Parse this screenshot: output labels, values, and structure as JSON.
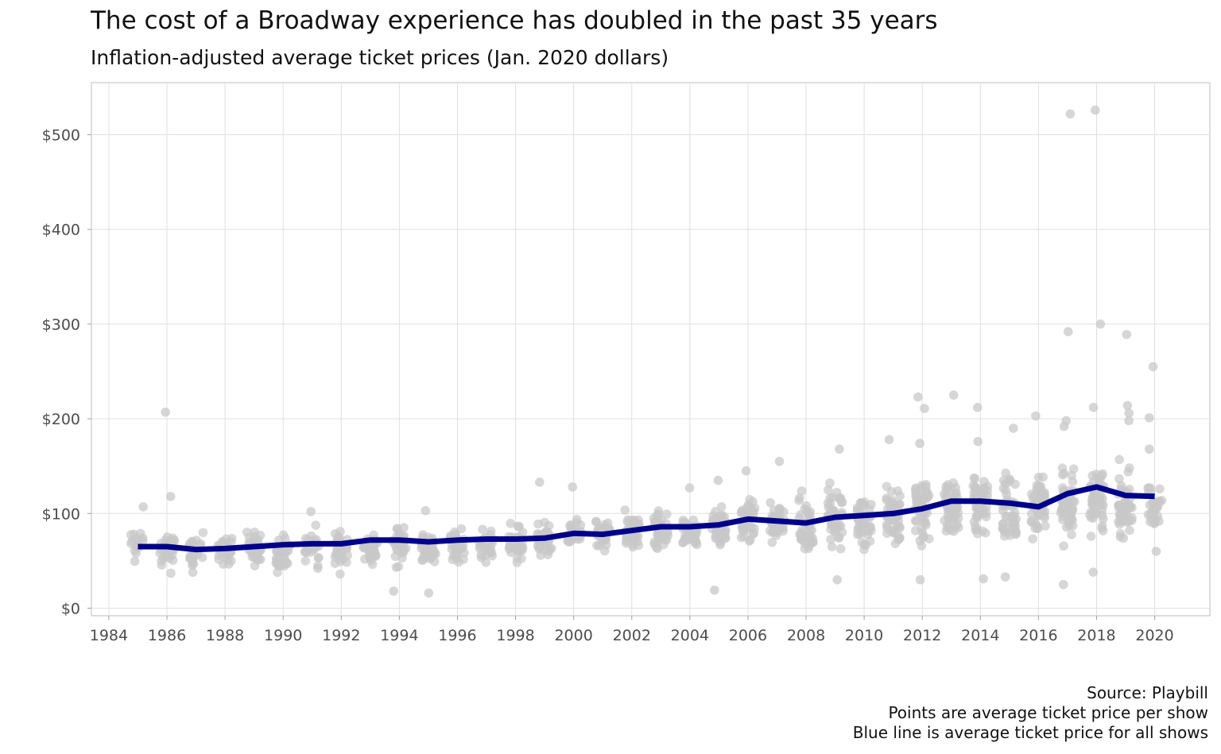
{
  "title": "The cost of a Broadway experience has doubled in the past 35 years",
  "subtitle": "Inflation-adjusted average ticket prices (Jan. 2020 dollars)",
  "caption": [
    "Source: Playbill",
    "Points are average ticket price per show",
    "Blue line is average ticket price for all shows"
  ],
  "colors": {
    "line": "#00008B",
    "points": "#C8C8C8",
    "grid": "#E0E0E0",
    "panel_border": "#BDBDBD",
    "axis_text": "#4D4D4D"
  },
  "chart_data": {
    "type": "scatter",
    "xlim": [
      1983.4,
      2021.9
    ],
    "ylim": [
      -8,
      555
    ],
    "grid": true,
    "x_ticks": [
      1984,
      1986,
      1988,
      1990,
      1992,
      1994,
      1996,
      1998,
      2000,
      2002,
      2004,
      2006,
      2008,
      2010,
      2012,
      2014,
      2016,
      2018,
      2020
    ],
    "x_tick_labels": [
      "1984",
      "1986",
      "1988",
      "1990",
      "1992",
      "1994",
      "1996",
      "1998",
      "2000",
      "2002",
      "2004",
      "2006",
      "2008",
      "2010",
      "2012",
      "2014",
      "2016",
      "2018",
      "2020"
    ],
    "y_ticks": [
      0,
      100,
      200,
      300,
      400,
      500
    ],
    "y_tick_labels": [
      "$0",
      "$100",
      "$200",
      "$300",
      "$400",
      "$500"
    ],
    "line_series": {
      "x": [
        1985,
        1986,
        1987,
        1988,
        1989,
        1990,
        1991,
        1992,
        1993,
        1994,
        1995,
        1996,
        1997,
        1998,
        1999,
        2000,
        2001,
        2002,
        2003,
        2004,
        2005,
        2006,
        2007,
        2008,
        2009,
        2010,
        2011,
        2012,
        2013,
        2014,
        2015,
        2016,
        2017,
        2018,
        2019,
        2020
      ],
      "y": [
        65,
        65,
        62,
        63,
        65,
        67,
        68,
        68,
        72,
        72,
        70,
        72,
        73,
        73,
        74,
        79,
        78,
        82,
        86,
        86,
        88,
        94,
        92,
        90,
        96,
        98,
        100,
        105,
        113,
        113,
        111,
        107,
        121,
        128,
        119,
        118
      ]
    },
    "point_ranges": {
      "x": [
        1985,
        1986,
        1987,
        1988,
        1989,
        1990,
        1991,
        1992,
        1993,
        1994,
        1995,
        1996,
        1997,
        1998,
        1999,
        2000,
        2001,
        2002,
        2003,
        2004,
        2005,
        2006,
        2007,
        2008,
        2009,
        2010,
        2011,
        2012,
        2013,
        2014,
        2015,
        2016,
        2017,
        2018,
        2019,
        2020
      ],
      "low": [
        35,
        25,
        25,
        30,
        28,
        22,
        22,
        25,
        30,
        28,
        25,
        32,
        30,
        32,
        40,
        45,
        48,
        40,
        42,
        48,
        50,
        55,
        50,
        45,
        50,
        45,
        40,
        38,
        45,
        42,
        45,
        55,
        45,
        45,
        50,
        65
      ],
      "high": [
        100,
        90,
        90,
        90,
        90,
        90,
        95,
        92,
        92,
        95,
        95,
        90,
        92,
        98,
        100,
        100,
        105,
        110,
        115,
        110,
        115,
        125,
        125,
        130,
        145,
        140,
        150,
        160,
        165,
        170,
        160,
        160,
        160,
        170,
        165,
        140
      ],
      "count": [
        15,
        35,
        30,
        30,
        32,
        34,
        30,
        32,
        30,
        34,
        30,
        30,
        30,
        32,
        35,
        32,
        35,
        38,
        38,
        40,
        35,
        42,
        40,
        40,
        45,
        45,
        48,
        50,
        50,
        52,
        50,
        52,
        50,
        52,
        48,
        30
      ]
    },
    "outliers": [
      {
        "x": 1986,
        "y": 207
      },
      {
        "x": 1986,
        "y": 118
      },
      {
        "x": 1985,
        "y": 107
      },
      {
        "x": 1991,
        "y": 102
      },
      {
        "x": 1995,
        "y": 103
      },
      {
        "x": 1995,
        "y": 16
      },
      {
        "x": 1994,
        "y": 18
      },
      {
        "x": 1999,
        "y": 133
      },
      {
        "x": 2000,
        "y": 128
      },
      {
        "x": 2004,
        "y": 127
      },
      {
        "x": 2005,
        "y": 19
      },
      {
        "x": 2005,
        "y": 135
      },
      {
        "x": 2006,
        "y": 145
      },
      {
        "x": 2007,
        "y": 155
      },
      {
        "x": 2009,
        "y": 168
      },
      {
        "x": 2009,
        "y": 30
      },
      {
        "x": 2011,
        "y": 178
      },
      {
        "x": 2012,
        "y": 223
      },
      {
        "x": 2012,
        "y": 211
      },
      {
        "x": 2012,
        "y": 174
      },
      {
        "x": 2012,
        "y": 30
      },
      {
        "x": 2013,
        "y": 225
      },
      {
        "x": 2014,
        "y": 212
      },
      {
        "x": 2014,
        "y": 176
      },
      {
        "x": 2014,
        "y": 31
      },
      {
        "x": 2015,
        "y": 190
      },
      {
        "x": 2015,
        "y": 33
      },
      {
        "x": 2016,
        "y": 203
      },
      {
        "x": 2017,
        "y": 522
      },
      {
        "x": 2017,
        "y": 292
      },
      {
        "x": 2017,
        "y": 198
      },
      {
        "x": 2017,
        "y": 192
      },
      {
        "x": 2017,
        "y": 25
      },
      {
        "x": 2018,
        "y": 526
      },
      {
        "x": 2018,
        "y": 300
      },
      {
        "x": 2018,
        "y": 212
      },
      {
        "x": 2018,
        "y": 38
      },
      {
        "x": 2019,
        "y": 289
      },
      {
        "x": 2019,
        "y": 214
      },
      {
        "x": 2019,
        "y": 206
      },
      {
        "x": 2019,
        "y": 198
      },
      {
        "x": 2020,
        "y": 255
      },
      {
        "x": 2020,
        "y": 201
      },
      {
        "x": 2020,
        "y": 168
      },
      {
        "x": 2020,
        "y": 60
      }
    ]
  }
}
